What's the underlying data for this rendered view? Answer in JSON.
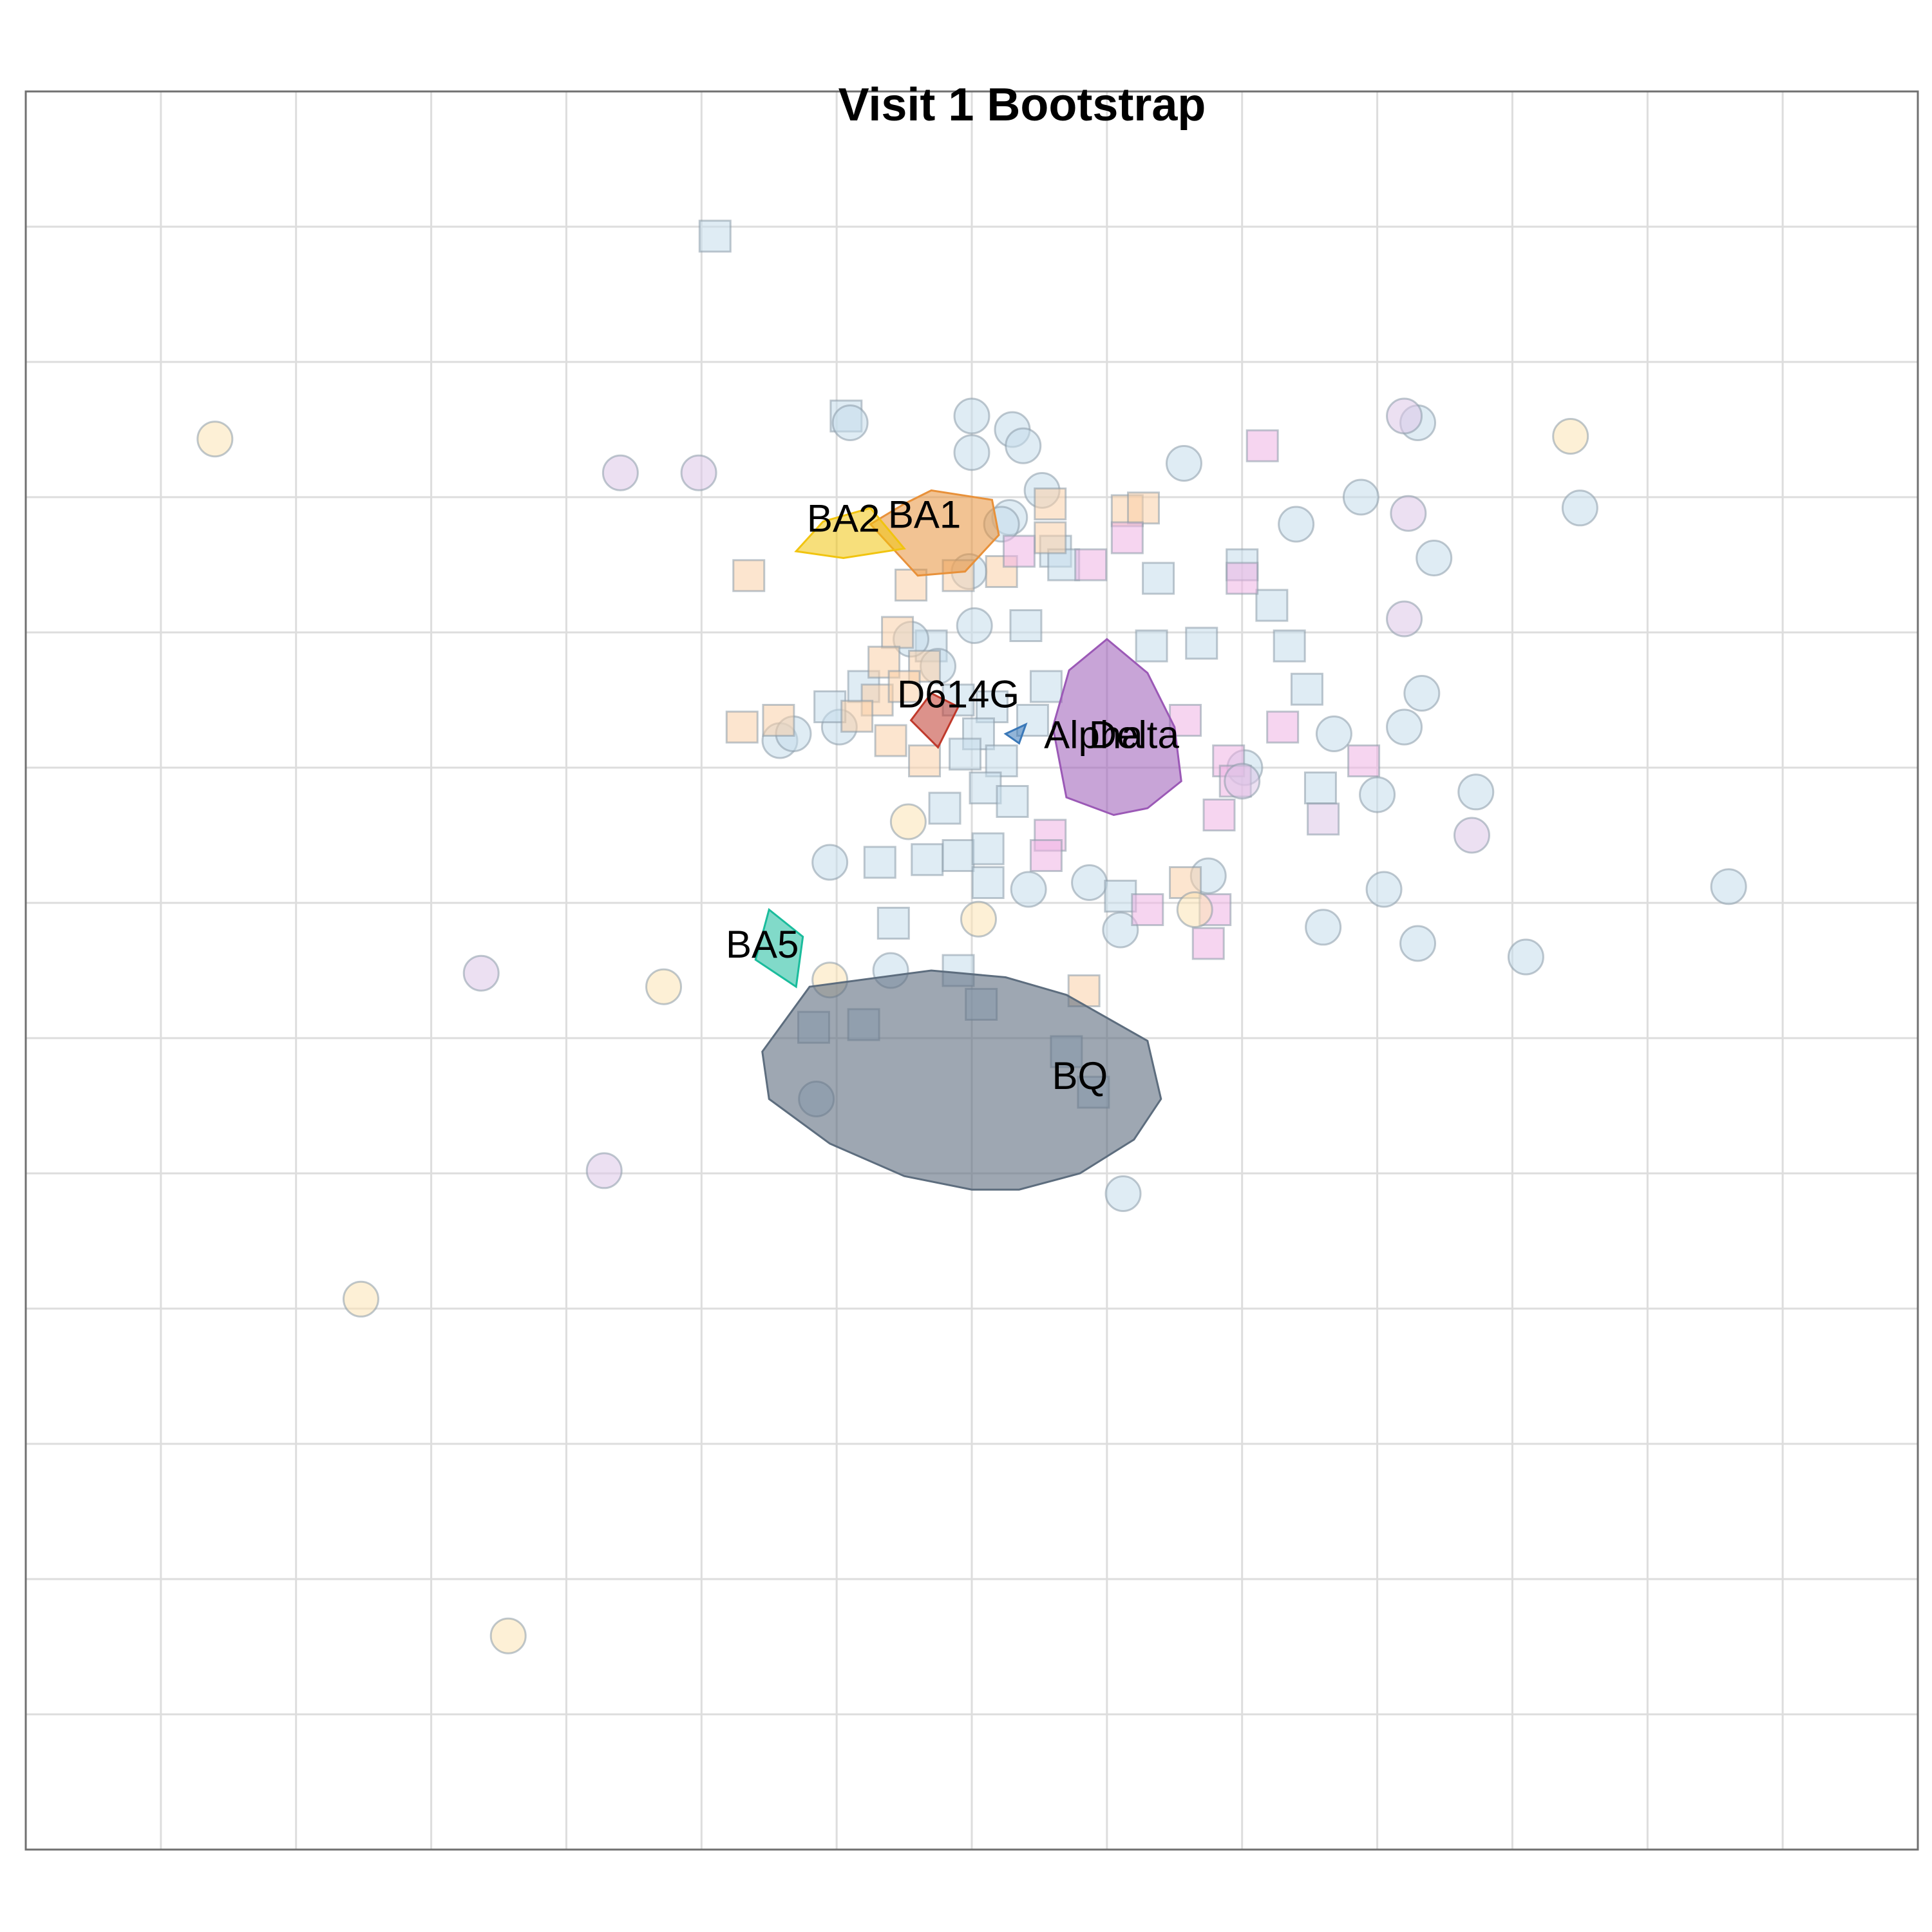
{
  "chart_data": {
    "type": "scatter",
    "title": "Visit 1 Bootstrap",
    "xlabel": "",
    "ylabel": "",
    "grid": true,
    "legend": "none",
    "xlim": [
      -7,
      7
    ],
    "ylim": [
      -7,
      6
    ],
    "colors": {
      "D614G": "#c0392b",
      "Alpha": "#3a78b8",
      "Delta": "#9b59b6",
      "BA1": "#e8913a",
      "BA2": "#f1c40f",
      "BA5": "#1abc9c",
      "BQ": "#5d6d7e",
      "sera_light_blue": "#c5dceb",
      "sera_peach": "#f9cfa8",
      "sera_pink": "#efb3e4",
      "sera_lavender": "#dcc6e8",
      "sera_cream": "#fbe3b5"
    },
    "variants": [
      {
        "name": "D614G",
        "color": "#c0392b",
        "label_x": -0.1,
        "label_y": 1.52,
        "hull": [
          [
            -0.3,
            1.55
          ],
          [
            -0.1,
            1.45
          ],
          [
            -0.25,
            1.15
          ],
          [
            -0.45,
            1.35
          ]
        ]
      },
      {
        "name": "Alpha",
        "color": "#3a78b8",
        "label_x": 0.9,
        "label_y": 1.22,
        "hull": [
          [
            0.25,
            1.25
          ],
          [
            0.4,
            1.32
          ],
          [
            0.35,
            1.18
          ]
        ]
      },
      {
        "name": "Delta",
        "color": "#9b59b6",
        "label_x": 1.2,
        "label_y": 1.22,
        "hull": [
          [
            1.0,
            1.95
          ],
          [
            1.3,
            1.7
          ],
          [
            1.5,
            1.3
          ],
          [
            1.55,
            0.9
          ],
          [
            1.3,
            0.7
          ],
          [
            1.05,
            0.65
          ],
          [
            0.7,
            0.78
          ],
          [
            0.6,
            1.3
          ],
          [
            0.72,
            1.72
          ]
        ]
      },
      {
        "name": "BA1",
        "color": "#e8913a",
        "label_x": -0.35,
        "label_y": 2.85,
        "hull": [
          [
            -0.3,
            3.05
          ],
          [
            0.15,
            2.98
          ],
          [
            0.2,
            2.72
          ],
          [
            -0.05,
            2.45
          ],
          [
            -0.4,
            2.42
          ],
          [
            -0.75,
            2.8
          ],
          [
            -0.5,
            2.95
          ]
        ]
      },
      {
        "name": "BA2",
        "color": "#f1c40f",
        "label_x": -0.95,
        "label_y": 2.82,
        "hull": [
          [
            -0.75,
            2.92
          ],
          [
            -0.5,
            2.62
          ],
          [
            -0.95,
            2.55
          ],
          [
            -1.3,
            2.6
          ],
          [
            -1.1,
            2.82
          ]
        ]
      },
      {
        "name": "BA5",
        "color": "#1abc9c",
        "label_x": -1.55,
        "label_y": -0.33,
        "hull": [
          [
            -1.5,
            -0.05
          ],
          [
            -1.25,
            -0.25
          ],
          [
            -1.3,
            -0.62
          ],
          [
            -1.6,
            -0.42
          ]
        ]
      },
      {
        "name": "BQ",
        "color": "#5d6d7e",
        "label_x": 0.8,
        "label_y": -1.3,
        "hull": [
          [
            -1.2,
            -0.62
          ],
          [
            -0.3,
            -0.5
          ],
          [
            0.25,
            -0.55
          ],
          [
            0.7,
            -0.68
          ],
          [
            1.3,
            -1.02
          ],
          [
            1.4,
            -1.45
          ],
          [
            1.2,
            -1.75
          ],
          [
            0.8,
            -2.0
          ],
          [
            0.35,
            -2.12
          ],
          [
            0.0,
            -2.12
          ],
          [
            -0.5,
            -2.02
          ],
          [
            -1.05,
            -1.78
          ],
          [
            -1.5,
            -1.45
          ],
          [
            -1.55,
            -1.1
          ]
        ]
      }
    ],
    "points": [
      {
        "shape": "square",
        "color": "sera_light_blue",
        "x": -1.9,
        "y": 4.93
      },
      {
        "shape": "square",
        "color": "sera_light_blue",
        "x": -0.93,
        "y": 3.6
      },
      {
        "shape": "circle",
        "color": "sera_light_blue",
        "x": -0.9,
        "y": 3.55
      },
      {
        "shape": "circle",
        "color": "sera_light_blue",
        "x": 0.0,
        "y": 3.6
      },
      {
        "shape": "circle",
        "color": "sera_light_blue",
        "x": 0.3,
        "y": 3.5
      },
      {
        "shape": "circle",
        "color": "sera_light_blue",
        "x": 0.38,
        "y": 3.38
      },
      {
        "shape": "circle",
        "color": "sera_light_blue",
        "x": 0.0,
        "y": 3.33
      },
      {
        "shape": "circle",
        "color": "sera_light_blue",
        "x": 1.57,
        "y": 3.25
      },
      {
        "shape": "circle",
        "color": "sera_light_blue",
        "x": 0.52,
        "y": 3.05
      },
      {
        "shape": "circle",
        "color": "sera_light_blue",
        "x": 0.28,
        "y": 2.85
      },
      {
        "shape": "circle",
        "color": "sera_light_blue",
        "x": 0.22,
        "y": 2.8
      },
      {
        "shape": "circle",
        "color": "sera_light_blue",
        "x": 2.4,
        "y": 2.8
      },
      {
        "shape": "circle",
        "color": "sera_light_blue",
        "x": 2.88,
        "y": 3.0
      },
      {
        "shape": "circle",
        "color": "sera_light_blue",
        "x": 3.3,
        "y": 3.55
      },
      {
        "shape": "circle",
        "color": "sera_light_blue",
        "x": 4.5,
        "y": 2.92
      },
      {
        "shape": "circle",
        "color": "sera_light_blue",
        "x": 3.42,
        "y": 2.55
      },
      {
        "shape": "circle",
        "color": "sera_light_blue",
        "x": -0.02,
        "y": 2.45
      },
      {
        "shape": "circle",
        "color": "sera_light_blue",
        "x": 0.02,
        "y": 2.05
      },
      {
        "shape": "square",
        "color": "sera_light_blue",
        "x": 0.62,
        "y": 2.6
      },
      {
        "shape": "square",
        "color": "sera_light_blue",
        "x": 0.68,
        "y": 2.5
      },
      {
        "shape": "square",
        "color": "sera_light_blue",
        "x": 1.38,
        "y": 2.4
      },
      {
        "shape": "square",
        "color": "sera_light_blue",
        "x": 2.0,
        "y": 2.5
      },
      {
        "shape": "square",
        "color": "sera_light_blue",
        "x": 2.22,
        "y": 2.2
      },
      {
        "shape": "square",
        "color": "sera_light_blue",
        "x": 2.35,
        "y": 1.9
      },
      {
        "shape": "square",
        "color": "sera_light_blue",
        "x": 1.7,
        "y": 1.92
      },
      {
        "shape": "square",
        "color": "sera_light_blue",
        "x": 1.33,
        "y": 1.9
      },
      {
        "shape": "square",
        "color": "sera_light_blue",
        "x": 0.4,
        "y": 2.05
      },
      {
        "shape": "square",
        "color": "sera_light_blue",
        "x": -0.8,
        "y": 1.6
      },
      {
        "shape": "circle",
        "color": "sera_light_blue",
        "x": 3.33,
        "y": 1.55
      },
      {
        "shape": "circle",
        "color": "sera_light_blue",
        "x": 3.2,
        "y": 1.3
      },
      {
        "shape": "circle",
        "color": "sera_light_blue",
        "x": 2.68,
        "y": 1.25
      },
      {
        "shape": "circle",
        "color": "sera_light_blue",
        "x": 2.02,
        "y": 1.0
      },
      {
        "shape": "circle",
        "color": "sera_light_blue",
        "x": 3.0,
        "y": 0.8
      },
      {
        "shape": "circle",
        "color": "sera_light_blue",
        "x": 3.73,
        "y": 0.82
      },
      {
        "shape": "square",
        "color": "sera_light_blue",
        "x": 2.48,
        "y": 1.58
      },
      {
        "shape": "square",
        "color": "sera_light_blue",
        "x": 2.58,
        "y": 0.85
      },
      {
        "shape": "circle",
        "color": "sera_light_blue",
        "x": -1.42,
        "y": 1.2
      },
      {
        "shape": "circle",
        "color": "sera_light_blue",
        "x": -1.32,
        "y": 1.25
      },
      {
        "shape": "circle",
        "color": "sera_light_blue",
        "x": -0.98,
        "y": 1.3
      },
      {
        "shape": "circle",
        "color": "sera_light_blue",
        "x": -1.05,
        "y": 0.3
      },
      {
        "shape": "square",
        "color": "sera_light_blue",
        "x": -0.68,
        "y": 0.3
      },
      {
        "shape": "square",
        "color": "sera_light_blue",
        "x": -0.33,
        "y": 0.32
      },
      {
        "shape": "square",
        "color": "sera_light_blue",
        "x": -0.1,
        "y": 0.35
      },
      {
        "shape": "square",
        "color": "sera_light_blue",
        "x": 0.12,
        "y": 0.4
      },
      {
        "shape": "square",
        "color": "sera_light_blue",
        "x": 0.12,
        "y": 0.15
      },
      {
        "shape": "square",
        "color": "sera_light_blue",
        "x": -0.58,
        "y": -0.15
      },
      {
        "shape": "circle",
        "color": "sera_light_blue",
        "x": 0.42,
        "y": 0.1
      },
      {
        "shape": "circle",
        "color": "sera_light_blue",
        "x": 0.87,
        "y": 0.15
      },
      {
        "shape": "circle",
        "color": "sera_light_blue",
        "x": 1.1,
        "y": -0.2
      },
      {
        "shape": "circle",
        "color": "sera_light_blue",
        "x": 1.75,
        "y": 0.2
      },
      {
        "shape": "circle",
        "color": "sera_light_blue",
        "x": 2.6,
        "y": -0.18
      },
      {
        "shape": "circle",
        "color": "sera_light_blue",
        "x": 3.05,
        "y": 0.1
      },
      {
        "shape": "circle",
        "color": "sera_light_blue",
        "x": 3.3,
        "y": -0.3
      },
      {
        "shape": "circle",
        "color": "sera_light_blue",
        "x": 4.1,
        "y": -0.4
      },
      {
        "shape": "circle",
        "color": "sera_light_blue",
        "x": 5.6,
        "y": 0.12
      },
      {
        "shape": "square",
        "color": "sera_light_blue",
        "x": 1.1,
        "y": 0.05
      },
      {
        "shape": "square",
        "color": "sera_light_blue",
        "x": -0.1,
        "y": -0.5
      },
      {
        "shape": "circle",
        "color": "sera_light_blue",
        "x": -0.6,
        "y": -0.5
      },
      {
        "shape": "circle",
        "color": "sera_light_blue",
        "x": -1.15,
        "y": -1.45
      },
      {
        "shape": "circle",
        "color": "sera_light_blue",
        "x": 1.12,
        "y": -2.15
      },
      {
        "shape": "square",
        "color": "sera_light_blue",
        "x": -1.17,
        "y": -0.92
      },
      {
        "shape": "square",
        "color": "sera_light_blue",
        "x": 0.07,
        "y": -0.75
      },
      {
        "shape": "square",
        "color": "sera_light_blue",
        "x": -0.1,
        "y": 1.5
      },
      {
        "shape": "square",
        "color": "sera_light_blue",
        "x": 0.15,
        "y": 1.45
      },
      {
        "shape": "square",
        "color": "sera_light_blue",
        "x": 0.05,
        "y": 1.25
      },
      {
        "shape": "square",
        "color": "sera_light_blue",
        "x": -0.05,
        "y": 1.1
      },
      {
        "shape": "square",
        "color": "sera_light_blue",
        "x": 0.22,
        "y": 1.05
      },
      {
        "shape": "square",
        "color": "sera_light_blue",
        "x": 0.1,
        "y": 0.85
      },
      {
        "shape": "square",
        "color": "sera_light_blue",
        "x": 0.3,
        "y": 0.75
      },
      {
        "shape": "square",
        "color": "sera_light_blue",
        "x": -0.2,
        "y": 0.7
      },
      {
        "shape": "square",
        "color": "sera_light_blue",
        "x": 0.45,
        "y": 1.35
      },
      {
        "shape": "square",
        "color": "sera_light_blue",
        "x": -0.3,
        "y": 1.9
      },
      {
        "shape": "square",
        "color": "sera_light_blue",
        "x": 0.55,
        "y": 1.6
      },
      {
        "shape": "square",
        "color": "sera_light_blue",
        "x": -1.05,
        "y": 1.45
      },
      {
        "shape": "circle",
        "color": "sera_light_blue",
        "x": -0.45,
        "y": 1.95
      },
      {
        "shape": "circle",
        "color": "sera_light_blue",
        "x": -0.25,
        "y": 1.75
      },
      {
        "shape": "square",
        "color": "sera_peach",
        "x": -1.65,
        "y": 2.42
      },
      {
        "shape": "square",
        "color": "sera_peach",
        "x": -1.7,
        "y": 1.3
      },
      {
        "shape": "square",
        "color": "sera_peach",
        "x": -1.43,
        "y": 1.35
      },
      {
        "shape": "square",
        "color": "sera_peach",
        "x": 0.58,
        "y": 2.95
      },
      {
        "shape": "square",
        "color": "sera_peach",
        "x": 1.15,
        "y": 2.9
      },
      {
        "shape": "square",
        "color": "sera_peach",
        "x": 1.27,
        "y": 2.92
      },
      {
        "shape": "square",
        "color": "sera_peach",
        "x": 0.22,
        "y": 2.45
      },
      {
        "shape": "square",
        "color": "sera_peach",
        "x": -0.1,
        "y": 2.42
      },
      {
        "shape": "square",
        "color": "sera_peach",
        "x": -0.45,
        "y": 2.35
      },
      {
        "shape": "square",
        "color": "sera_peach",
        "x": -0.55,
        "y": 2.0
      },
      {
        "shape": "square",
        "color": "sera_peach",
        "x": -0.65,
        "y": 1.78
      },
      {
        "shape": "square",
        "color": "sera_peach",
        "x": -0.7,
        "y": 1.5
      },
      {
        "shape": "square",
        "color": "sera_peach",
        "x": -0.85,
        "y": 1.38
      },
      {
        "shape": "square",
        "color": "sera_peach",
        "x": -0.6,
        "y": 1.2
      },
      {
        "shape": "square",
        "color": "sera_peach",
        "x": -0.35,
        "y": 1.05
      },
      {
        "shape": "square",
        "color": "sera_peach",
        "x": -0.35,
        "y": 1.75
      },
      {
        "shape": "square",
        "color": "sera_peach",
        "x": -0.5,
        "y": 1.6
      },
      {
        "shape": "square",
        "color": "sera_peach",
        "x": 0.58,
        "y": 2.7
      },
      {
        "shape": "square",
        "color": "sera_peach",
        "x": 0.83,
        "y": -0.65
      },
      {
        "shape": "square",
        "color": "sera_peach",
        "x": 1.58,
        "y": 0.15
      },
      {
        "shape": "square",
        "color": "sera_pink",
        "x": 2.15,
        "y": 3.38
      },
      {
        "shape": "square",
        "color": "sera_pink",
        "x": 0.35,
        "y": 2.6
      },
      {
        "shape": "square",
        "color": "sera_pink",
        "x": 0.88,
        "y": 2.5
      },
      {
        "shape": "square",
        "color": "sera_pink",
        "x": 1.15,
        "y": 2.7
      },
      {
        "shape": "square",
        "color": "sera_pink",
        "x": 2.0,
        "y": 2.4
      },
      {
        "shape": "square",
        "color": "sera_pink",
        "x": 1.58,
        "y": 1.35
      },
      {
        "shape": "square",
        "color": "sera_pink",
        "x": 2.3,
        "y": 1.3
      },
      {
        "shape": "square",
        "color": "sera_pink",
        "x": 1.9,
        "y": 1.05
      },
      {
        "shape": "square",
        "color": "sera_pink",
        "x": 2.9,
        "y": 1.05
      },
      {
        "shape": "square",
        "color": "sera_pink",
        "x": 1.83,
        "y": 0.65
      },
      {
        "shape": "square",
        "color": "sera_pink",
        "x": 0.58,
        "y": 0.5
      },
      {
        "shape": "square",
        "color": "sera_pink",
        "x": 0.55,
        "y": 0.35
      },
      {
        "shape": "square",
        "color": "sera_pink",
        "x": 1.3,
        "y": -0.05
      },
      {
        "shape": "square",
        "color": "sera_pink",
        "x": 1.8,
        "y": -0.05
      },
      {
        "shape": "square",
        "color": "sera_pink",
        "x": 1.75,
        "y": -0.3
      },
      {
        "shape": "square",
        "color": "sera_pink",
        "x": 1.95,
        "y": 0.9
      },
      {
        "shape": "circle",
        "color": "sera_lavender",
        "x": 3.2,
        "y": 3.6
      },
      {
        "shape": "circle",
        "color": "sera_lavender",
        "x": 3.23,
        "y": 2.88
      },
      {
        "shape": "circle",
        "color": "sera_lavender",
        "x": 3.2,
        "y": 2.1
      },
      {
        "shape": "circle",
        "color": "sera_lavender",
        "x": 3.7,
        "y": 0.5
      },
      {
        "shape": "circle",
        "color": "sera_lavender",
        "x": 2.0,
        "y": 0.9
      },
      {
        "shape": "circle",
        "color": "sera_lavender",
        "x": -2.6,
        "y": 3.18
      },
      {
        "shape": "circle",
        "color": "sera_lavender",
        "x": -2.02,
        "y": 3.18
      },
      {
        "shape": "circle",
        "color": "sera_lavender",
        "x": -3.63,
        "y": -0.52
      },
      {
        "shape": "circle",
        "color": "sera_lavender",
        "x": -2.72,
        "y": -1.98
      },
      {
        "shape": "square",
        "color": "sera_lavender",
        "x": 2.6,
        "y": 0.62
      },
      {
        "shape": "circle",
        "color": "sera_cream",
        "x": -5.6,
        "y": 3.43
      },
      {
        "shape": "circle",
        "color": "sera_cream",
        "x": 4.43,
        "y": 3.45
      },
      {
        "shape": "circle",
        "color": "sera_cream",
        "x": -0.47,
        "y": 0.6
      },
      {
        "shape": "circle",
        "color": "sera_cream",
        "x": 0.05,
        "y": -0.12
      },
      {
        "shape": "circle",
        "color": "sera_cream",
        "x": -2.28,
        "y": -0.62
      },
      {
        "shape": "circle",
        "color": "sera_cream",
        "x": -1.05,
        "y": -0.57
      },
      {
        "shape": "circle",
        "color": "sera_cream",
        "x": 1.65,
        "y": -0.05
      },
      {
        "shape": "circle",
        "color": "sera_cream",
        "x": -4.52,
        "y": -2.93
      },
      {
        "shape": "circle",
        "color": "sera_cream",
        "x": -3.43,
        "y": -5.42
      },
      {
        "shape": "square",
        "color": "sera_light_blue",
        "x": -0.8,
        "y": -0.9
      },
      {
        "shape": "square",
        "color": "sera_light_blue",
        "x": 0.7,
        "y": -1.1
      },
      {
        "shape": "square",
        "color": "sera_light_blue",
        "x": 0.9,
        "y": -1.4
      }
    ]
  }
}
